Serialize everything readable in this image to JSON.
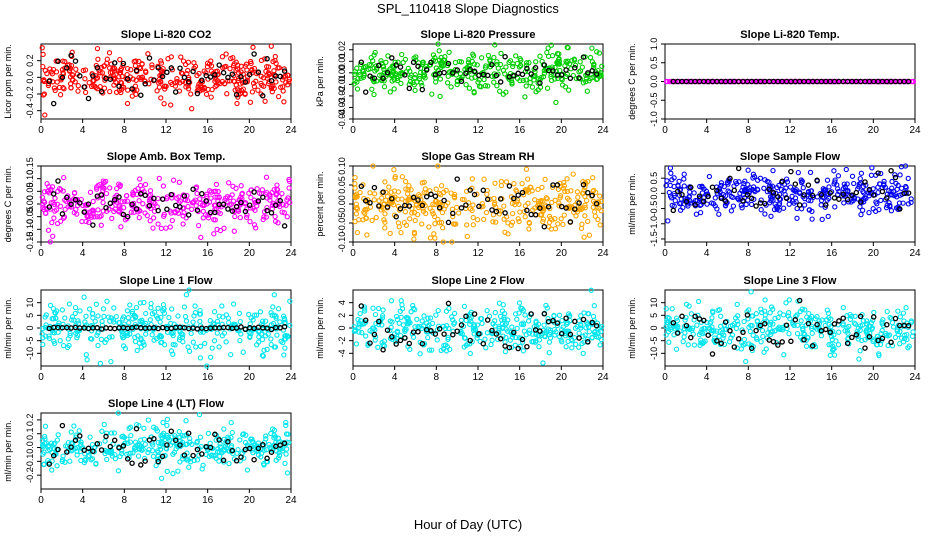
{
  "figure": {
    "title": "SPL_110418  Slope Diagnostics",
    "xlabel": "Hour of Day (UTC)"
  },
  "chart_data": [
    {
      "type": "scatter",
      "title": "Slope Li-820 CO2",
      "ylabel": "Licor ppm per min.",
      "xlim": [
        0,
        24
      ],
      "xticks": [
        0,
        4,
        8,
        12,
        16,
        20,
        24
      ],
      "ylim": [
        -0.5,
        0.4
      ],
      "yticks": [
        -0.4,
        -0.2,
        0,
        0.2
      ],
      "ytick_labels": [
        "-0.4",
        "-0.2",
        "0.0",
        "0.2"
      ],
      "color": "#ff0000",
      "spread": 0.13,
      "black_spread": 0.12,
      "grid": false,
      "series_note": "dense colored cloud centered near 0 with black overlay points"
    },
    {
      "type": "scatter",
      "title": "Slope Li-820 Pressure",
      "ylabel": "kPa per min.",
      "xlim": [
        0,
        24
      ],
      "xticks": [
        0,
        4,
        8,
        12,
        16,
        20,
        24
      ],
      "ylim": [
        -0.04,
        0.025
      ],
      "yticks": [
        -0.04,
        -0.03,
        -0.02,
        -0.01,
        0,
        0.01,
        0.02
      ],
      "ytick_labels": [
        "-0.04",
        "-0.03",
        "-0.02",
        "-0.01",
        "0.00",
        "0.01",
        "0.02"
      ],
      "color": "#00cc00",
      "spread": 0.009,
      "black_spread": 0.008,
      "grid": false
    },
    {
      "type": "scatter",
      "title": "Slope Li-820 Temp.",
      "ylabel": "degrees C per min.",
      "xlim": [
        0,
        24
      ],
      "xticks": [
        0,
        4,
        8,
        12,
        16,
        20,
        24
      ],
      "ylim": [
        -1,
        1
      ],
      "yticks": [
        -1,
        -0.5,
        0,
        0.5,
        1
      ],
      "ytick_labels": [
        "-1.0",
        "-0.5",
        "0.0",
        "0.5",
        "1.0"
      ],
      "color": "#ff00ff",
      "spread": 0.0,
      "black_spread": 0.0,
      "grid": false
    },
    {
      "type": "scatter",
      "title": "Slope Amb. Box Temp.",
      "ylabel": "degrees C per min.",
      "xlim": [
        0,
        24
      ],
      "xticks": [
        0,
        4,
        8,
        12,
        16,
        20,
        24
      ],
      "ylim": [
        -0.15,
        0.15
      ],
      "yticks": [
        -0.15,
        -0.1,
        -0.05,
        0,
        0.05,
        0.1,
        0.15
      ],
      "ytick_labels": [
        "-0.15",
        "-0.10",
        "-0.05",
        "0.00",
        "0.05",
        "0.10",
        "0.15"
      ],
      "color": "#ff00ff",
      "spread": 0.045,
      "black_spread": 0.035,
      "grid": false
    },
    {
      "type": "scatter",
      "title": "Slope Gas Stream RH",
      "ylabel": "percent per min.",
      "xlim": [
        0,
        24
      ],
      "xticks": [
        0,
        4,
        8,
        12,
        16,
        20,
        24
      ],
      "ylim": [
        -0.1,
        0.1
      ],
      "yticks": [
        -0.1,
        -0.05,
        0,
        0.05,
        0.1
      ],
      "ytick_labels": [
        "-0.10",
        "-0.05",
        "0.00",
        "0.05",
        "0.10"
      ],
      "color": "#ffa500",
      "spread": 0.035,
      "black_spread": 0.025,
      "grid": false
    },
    {
      "type": "scatter",
      "title": "Slope Sample Flow",
      "ylabel": "ml/min per min.",
      "xlim": [
        0,
        24
      ],
      "xticks": [
        0,
        4,
        8,
        12,
        16,
        20,
        24
      ],
      "ylim": [
        -1.6,
        0.9
      ],
      "yticks": [
        -1.5,
        -1,
        -0.5,
        0,
        0.5
      ],
      "ytick_labels": [
        "-1.5",
        "-1.0",
        "-0.5",
        "0.0",
        "0.5"
      ],
      "color": "#0000ee",
      "spread": 0.35,
      "black_spread": 0.3,
      "grid": false
    },
    {
      "type": "scatter",
      "title": "Slope Line 1 Flow",
      "ylabel": "ml/min per min.",
      "xlim": [
        0,
        24
      ],
      "xticks": [
        0,
        4,
        8,
        12,
        16,
        20,
        24
      ],
      "ylim": [
        -15,
        15
      ],
      "yticks": [
        -10,
        -5,
        0,
        5,
        10
      ],
      "ytick_labels": [
        "-10",
        "-5",
        "0",
        "5",
        "10"
      ],
      "color": "#00e5ee",
      "spread": 5,
      "black_spread": 0.2,
      "grid": false
    },
    {
      "type": "scatter",
      "title": "Slope Line 2 Flow",
      "ylabel": "ml/min per min.",
      "xlim": [
        0,
        24
      ],
      "xticks": [
        0,
        4,
        8,
        12,
        16,
        20,
        24
      ],
      "ylim": [
        -6,
        6
      ],
      "yticks": [
        -4,
        -2,
        0,
        2,
        4
      ],
      "ytick_labels": [
        "-4",
        "-2",
        "0",
        "2",
        "4"
      ],
      "color": "#00e5ee",
      "spread": 1.8,
      "black_spread": 1.8,
      "grid": false
    },
    {
      "type": "scatter",
      "title": "Slope Line 3 Flow",
      "ylabel": "ml/min per min.",
      "xlim": [
        0,
        24
      ],
      "xticks": [
        0,
        4,
        8,
        12,
        16,
        20,
        24
      ],
      "ylim": [
        -15,
        15
      ],
      "yticks": [
        -10,
        -5,
        0,
        5,
        10
      ],
      "ytick_labels": [
        "-10",
        "-5",
        "0",
        "5",
        "10"
      ],
      "color": "#00e5ee",
      "spread": 4.5,
      "black_spread": 4,
      "grid": false
    },
    {
      "type": "scatter",
      "title": "Slope Line 4 (LT) Flow",
      "ylabel": "ml/min per min.",
      "xlim": [
        0,
        24
      ],
      "xticks": [
        0,
        4,
        8,
        12,
        16,
        20,
        24
      ],
      "ylim": [
        -0.3,
        0.25
      ],
      "yticks": [
        -0.2,
        -0.1,
        0,
        0.1,
        0.2
      ],
      "ytick_labels": [
        "-0.2",
        "-0.1",
        "0.0",
        "0.1",
        "0.2"
      ],
      "color": "#00e5ee",
      "spread": 0.08,
      "black_spread": 0.07,
      "grid": false
    }
  ]
}
